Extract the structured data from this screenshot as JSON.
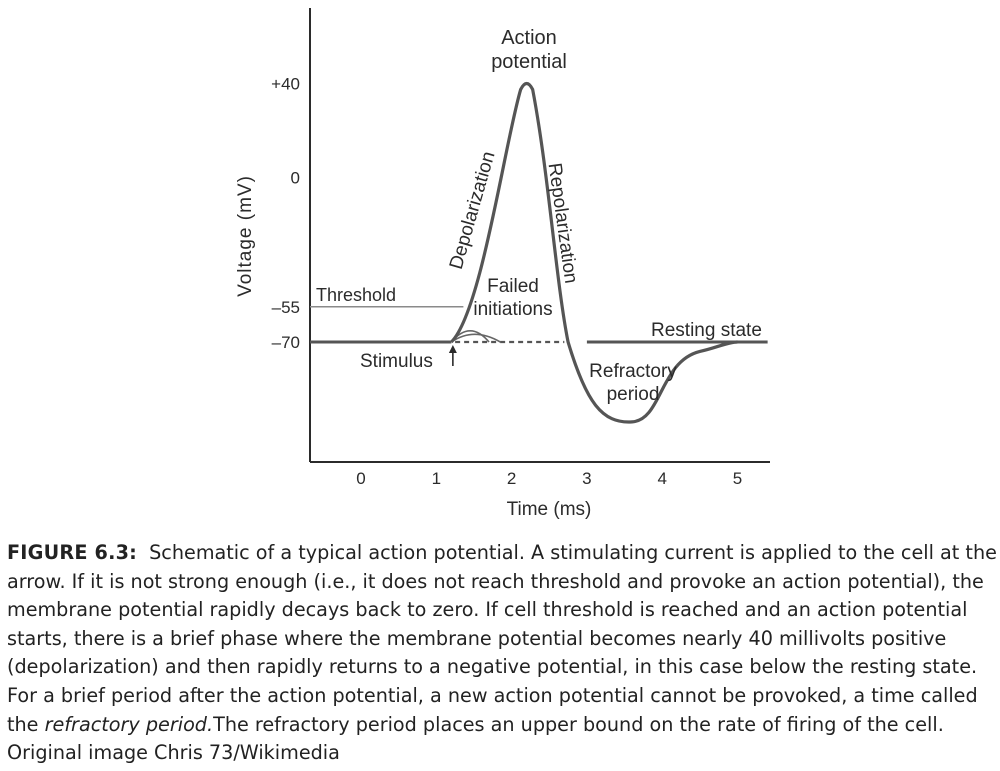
{
  "chart_data": {
    "type": "line",
    "title": "",
    "xlabel": "Time (ms)",
    "ylabel": "Voltage (mV)",
    "xlim": [
      -0.7,
      5.4
    ],
    "x_ticks": [
      "0",
      "1",
      "2",
      "3",
      "4",
      "5"
    ],
    "y_ticks": [
      "+40",
      "0",
      "–55",
      "–70"
    ],
    "y_tick_values": [
      40,
      0,
      -55,
      -70
    ],
    "grid": false,
    "series": [
      {
        "name": "Action potential",
        "x": [
          -0.7,
          0.0,
          1.0,
          1.2,
          2.2,
          2.75,
          3.6,
          4.5,
          5.0,
          5.4
        ],
        "y": [
          -70,
          -70,
          -70,
          -70,
          40,
          -70,
          -104,
          -74,
          -70,
          -70
        ]
      }
    ],
    "failed_initiations": [
      {
        "x": [
          1.2,
          1.45,
          1.7
        ],
        "y": [
          -70,
          -63,
          -70
        ]
      },
      {
        "x": [
          1.2,
          1.5,
          1.85
        ],
        "y": [
          -70,
          -66,
          -70
        ]
      }
    ],
    "threshold": {
      "value": -55,
      "label": "Threshold"
    },
    "annotations": {
      "action_potential": [
        "Action",
        "potential"
      ],
      "depolarization": "Depolarization",
      "repolarization": "Repolarization",
      "failed_initiations": [
        "Failed",
        "initiations"
      ],
      "resting_state": "Resting state",
      "stimulus": "Stimulus",
      "refractory_period": [
        "Refractory",
        "period"
      ]
    },
    "colors": {
      "curve": "#555555",
      "axis": "#2b2b2b",
      "text": "#2b2b2b"
    }
  },
  "caption": {
    "label": "FIGURE 6.3:",
    "text_1": "Schematic of a typical action potential. A stimulating current is applied to the cell at the arrow. If it is not strong enough (i.e., it does not reach threshold and provoke an action potential), the membrane potential rapidly decays back to zero. If cell threshold is reached and an action potential starts, there is a brief phase where the membrane potential becomes nearly 40 millivolts positive (depolarization) and then rapidly returns to a negative potential, in this case below the resting state. For a brief period after the action potential, a new action potential cannot be provoked, a time called the",
    "italic": "refractory period.",
    "text_2": "The refractory period places an upper bound on the rate of firing of the cell. Original image Chris 73/Wikimedia"
  }
}
